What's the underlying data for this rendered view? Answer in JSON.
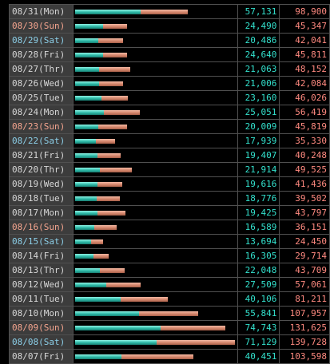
{
  "scale_max": 140000,
  "colors": {
    "weekday": "#d8d8d8",
    "sunday": "#f5a58f",
    "saturday": "#8ccfe8",
    "value1": "#33e0cc",
    "value2": "#ff8a80",
    "bar1": "#2cb8a6",
    "bar2": "#d4866c"
  },
  "rows": [
    {
      "date": "08/31(Mon)",
      "day_type": "weekday",
      "value1": 57131,
      "value2": 98900,
      "value1_text": "57,131",
      "value2_text": "98,900"
    },
    {
      "date": "08/30(Sun)",
      "day_type": "sunday",
      "value1": 24490,
      "value2": 45347,
      "value1_text": "24,490",
      "value2_text": "45,347"
    },
    {
      "date": "08/29(Sat)",
      "day_type": "saturday",
      "value1": 20486,
      "value2": 42041,
      "value1_text": "20,486",
      "value2_text": "42,041"
    },
    {
      "date": "08/28(Fri)",
      "day_type": "weekday",
      "value1": 24640,
      "value2": 45811,
      "value1_text": "24,640",
      "value2_text": "45,811"
    },
    {
      "date": "08/27(Thr)",
      "day_type": "weekday",
      "value1": 21063,
      "value2": 48152,
      "value1_text": "21,063",
      "value2_text": "48,152"
    },
    {
      "date": "08/26(Wed)",
      "day_type": "weekday",
      "value1": 21006,
      "value2": 42084,
      "value1_text": "21,006",
      "value2_text": "42,084"
    },
    {
      "date": "08/25(Tue)",
      "day_type": "weekday",
      "value1": 23160,
      "value2": 46026,
      "value1_text": "23,160",
      "value2_text": "46,026"
    },
    {
      "date": "08/24(Mon)",
      "day_type": "weekday",
      "value1": 25051,
      "value2": 56419,
      "value1_text": "25,051",
      "value2_text": "56,419"
    },
    {
      "date": "08/23(Sun)",
      "day_type": "sunday",
      "value1": 20009,
      "value2": 45819,
      "value1_text": "20,009",
      "value2_text": "45,819"
    },
    {
      "date": "08/22(Sat)",
      "day_type": "saturday",
      "value1": 17939,
      "value2": 35330,
      "value1_text": "17,939",
      "value2_text": "35,330"
    },
    {
      "date": "08/21(Fri)",
      "day_type": "weekday",
      "value1": 19407,
      "value2": 40248,
      "value1_text": "19,407",
      "value2_text": "40,248"
    },
    {
      "date": "08/20(Thr)",
      "day_type": "weekday",
      "value1": 21914,
      "value2": 49525,
      "value1_text": "21,914",
      "value2_text": "49,525"
    },
    {
      "date": "08/19(Wed)",
      "day_type": "weekday",
      "value1": 19616,
      "value2": 41436,
      "value1_text": "19,616",
      "value2_text": "41,436"
    },
    {
      "date": "08/18(Tue)",
      "day_type": "weekday",
      "value1": 18776,
      "value2": 39502,
      "value1_text": "18,776",
      "value2_text": "39,502"
    },
    {
      "date": "08/17(Mon)",
      "day_type": "weekday",
      "value1": 19425,
      "value2": 43797,
      "value1_text": "19,425",
      "value2_text": "43,797"
    },
    {
      "date": "08/16(Sun)",
      "day_type": "sunday",
      "value1": 16589,
      "value2": 36151,
      "value1_text": "16,589",
      "value2_text": "36,151"
    },
    {
      "date": "08/15(Sat)",
      "day_type": "saturday",
      "value1": 13694,
      "value2": 24450,
      "value1_text": "13,694",
      "value2_text": "24,450"
    },
    {
      "date": "08/14(Fri)",
      "day_type": "weekday",
      "value1": 16305,
      "value2": 29714,
      "value1_text": "16,305",
      "value2_text": "29,714"
    },
    {
      "date": "08/13(Thr)",
      "day_type": "weekday",
      "value1": 22048,
      "value2": 43709,
      "value1_text": "22,048",
      "value2_text": "43,709"
    },
    {
      "date": "08/12(Wed)",
      "day_type": "weekday",
      "value1": 27509,
      "value2": 57061,
      "value1_text": "27,509",
      "value2_text": "57,061"
    },
    {
      "date": "08/11(Tue)",
      "day_type": "weekday",
      "value1": 40106,
      "value2": 81211,
      "value1_text": "40,106",
      "value2_text": "81,211"
    },
    {
      "date": "08/10(Mon)",
      "day_type": "weekday",
      "value1": 55841,
      "value2": 107957,
      "value1_text": "55,841",
      "value2_text": "107,957"
    },
    {
      "date": "08/09(Sun)",
      "day_type": "sunday",
      "value1": 74743,
      "value2": 131625,
      "value1_text": "74,743",
      "value2_text": "131,625"
    },
    {
      "date": "08/08(Sat)",
      "day_type": "saturday",
      "value1": 71129,
      "value2": 139728,
      "value1_text": "71,129",
      "value2_text": "139,728"
    },
    {
      "date": "08/07(Fri)",
      "day_type": "weekday",
      "value1": 40451,
      "value2": 103598,
      "value1_text": "40,451",
      "value2_text": "103,598"
    }
  ]
}
